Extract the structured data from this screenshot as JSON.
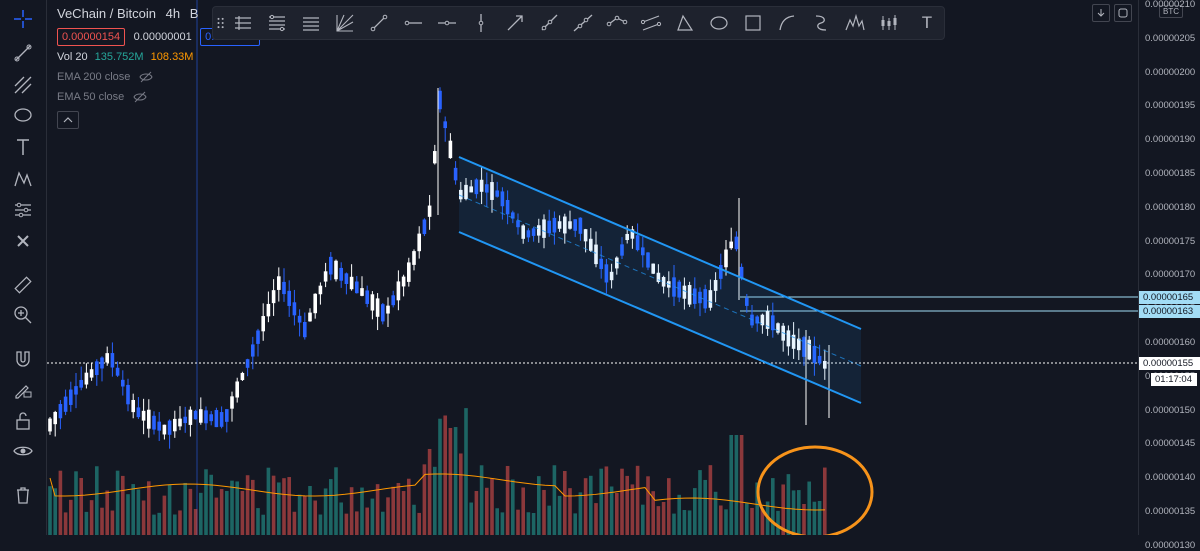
{
  "legend": {
    "symbol": "VeChain / Bitcoin",
    "interval": "4h",
    "exchange_letter": "B",
    "sell_price": "0.00000154",
    "spread": "0.00000001",
    "buy_price_partial": "0.0",
    "vol_label": "Vol 20",
    "vol_value": "135.752M",
    "vol_ma_value": "108.33M",
    "ema200_label": "EMA 200 close",
    "ema50_label": "EMA 50 close"
  },
  "price_axis": {
    "currency_badge": "BTC",
    "ticks": [
      "0.00000210",
      "0.00000205",
      "0.00000200",
      "0.00000195",
      "0.00000190",
      "0.00000185",
      "0.00000180",
      "0.00000175",
      "0.00000170",
      "0.00000165",
      "0.00000160",
      "0.00000155",
      "0.00000150",
      "0.00000145",
      "0.00000140",
      "0.00000135",
      "0.00000130"
    ],
    "tag_165": "0.00000165",
    "tag_163": "0.00000163",
    "tag_last": "0.00000155",
    "countdown": "01:17:04"
  },
  "drawing_toolbar": {
    "text_tool_label": "T"
  },
  "colors": {
    "background": "#131722",
    "up": "#ffffff",
    "down": "#2962ff",
    "channel": "#2196f3",
    "circle": "#f7931a",
    "vol_up": "#26a69a",
    "vol_down": "#ef5350",
    "vol_ma": "#ff9800"
  }
}
